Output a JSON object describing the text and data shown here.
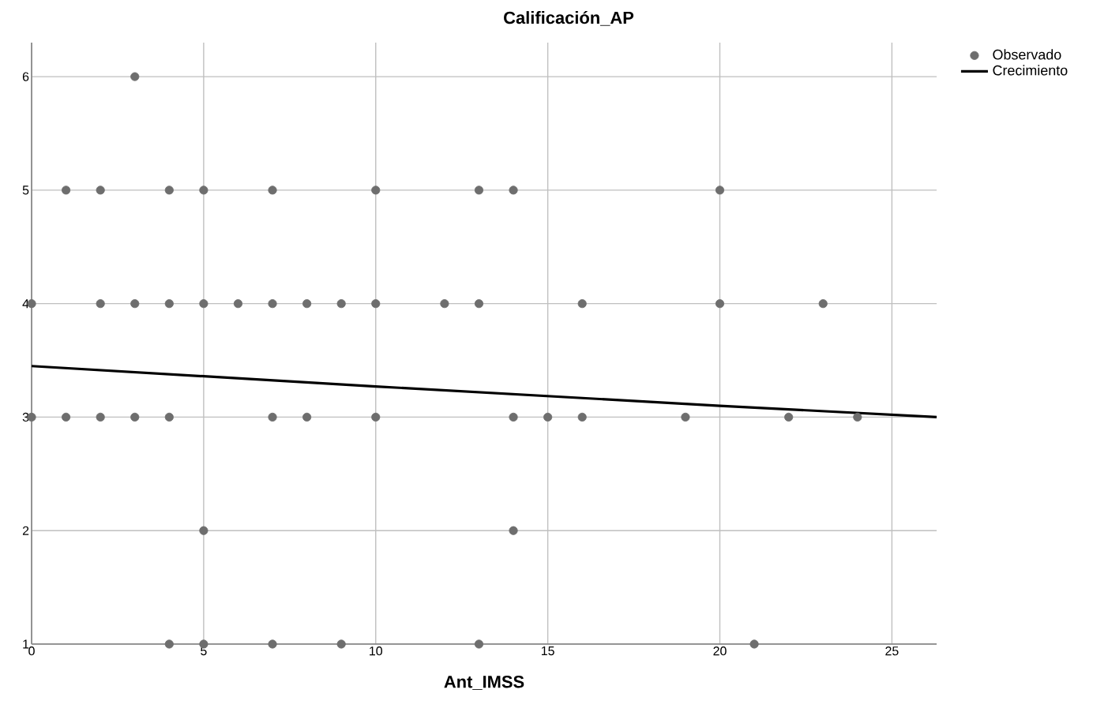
{
  "chart_data": {
    "type": "scatter",
    "title": "Calificación_AP",
    "xlabel": "Ant_IMSS",
    "xlim": [
      0,
      26.3
    ],
    "ylim": [
      1,
      6.3
    ],
    "xticks": [
      0,
      5,
      10,
      15,
      20,
      25
    ],
    "yticks": [
      1,
      2,
      3,
      4,
      5,
      6
    ],
    "grid": true,
    "legend": "top right",
    "series": [
      {
        "name": "Observado",
        "marker": "circle",
        "color": "#6e6e6e",
        "x": [
          3,
          1,
          2,
          4,
          5,
          7,
          10,
          13,
          14,
          20,
          0,
          2,
          3,
          4,
          5,
          6,
          7,
          8,
          9,
          10,
          12,
          13,
          16,
          20,
          23,
          0,
          1,
          2,
          3,
          4,
          7,
          8,
          10,
          14,
          15,
          16,
          19,
          22,
          24,
          5,
          14,
          4,
          5,
          7,
          9,
          13,
          21
        ],
        "values": [
          6,
          5,
          5,
          5,
          5,
          5,
          5,
          5,
          5,
          5,
          4,
          4,
          4,
          4,
          4,
          4,
          4,
          4,
          4,
          4,
          4,
          4,
          4,
          4,
          4,
          3,
          3,
          3,
          3,
          3,
          3,
          3,
          3,
          3,
          3,
          3,
          3,
          3,
          3,
          2,
          2,
          1,
          1,
          1,
          1,
          1,
          1
        ]
      },
      {
        "name": "Crecimiento",
        "type": "line",
        "marker": "none",
        "color": "#000000",
        "line_style": "solid",
        "x": [
          0,
          10,
          20,
          26.3
        ],
        "values": [
          3.45,
          3.27,
          3.1,
          3.0
        ]
      }
    ]
  }
}
